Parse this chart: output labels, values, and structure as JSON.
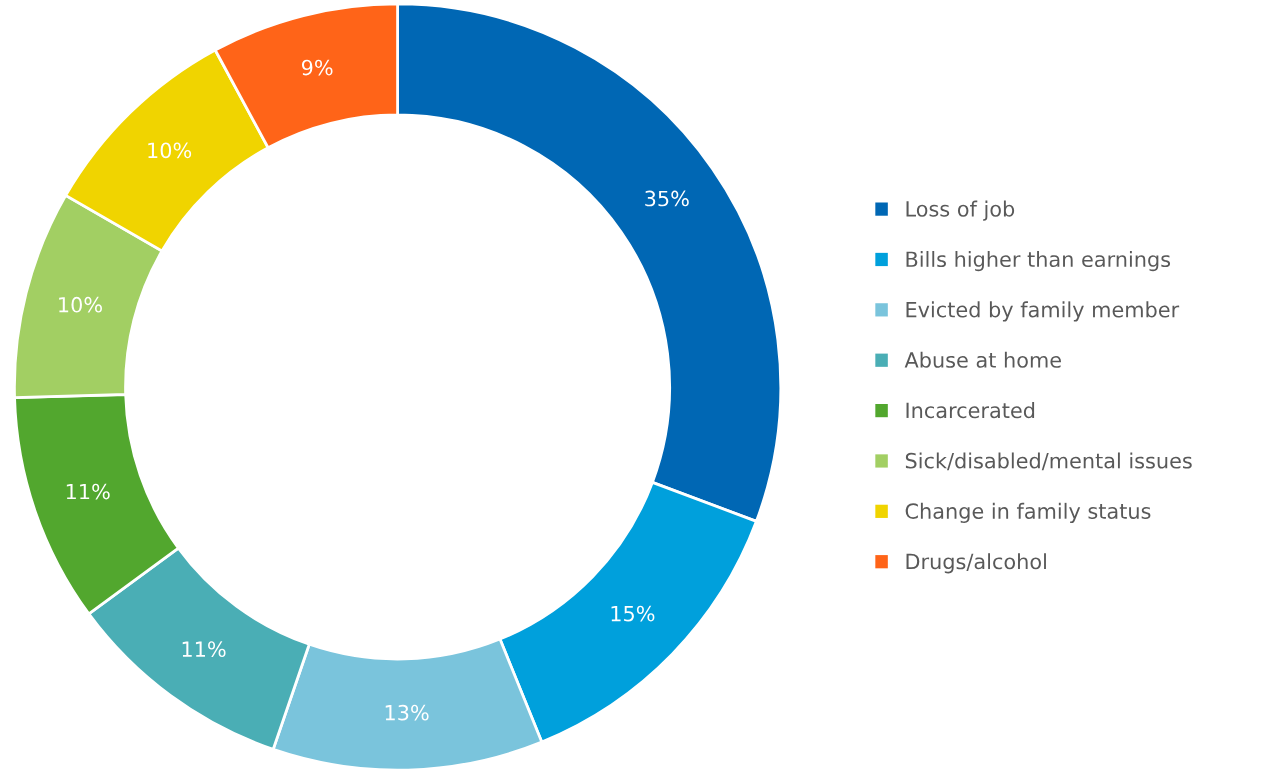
{
  "chart_data": {
    "type": "donut",
    "categories": [
      "Loss of job",
      "Bills higher than earnings",
      "Evicted by family member",
      "Abuse at home",
      "Incarcerated",
      "Sick/disabled/mental issues",
      "Change in family status",
      "Drugs/alcohol"
    ],
    "values": [
      35,
      15,
      13,
      11,
      11,
      10,
      10,
      9
    ],
    "colors": [
      "#0067b4",
      "#00a0dc",
      "#7ac4dc",
      "#4aaeb5",
      "#52a72e",
      "#a2cf63",
      "#f0d400",
      "#ff6418"
    ],
    "value_labels": [
      "35%",
      "15%",
      "13%",
      "11%",
      "11%",
      "10%",
      "10%",
      "9%"
    ],
    "legend": "right"
  }
}
